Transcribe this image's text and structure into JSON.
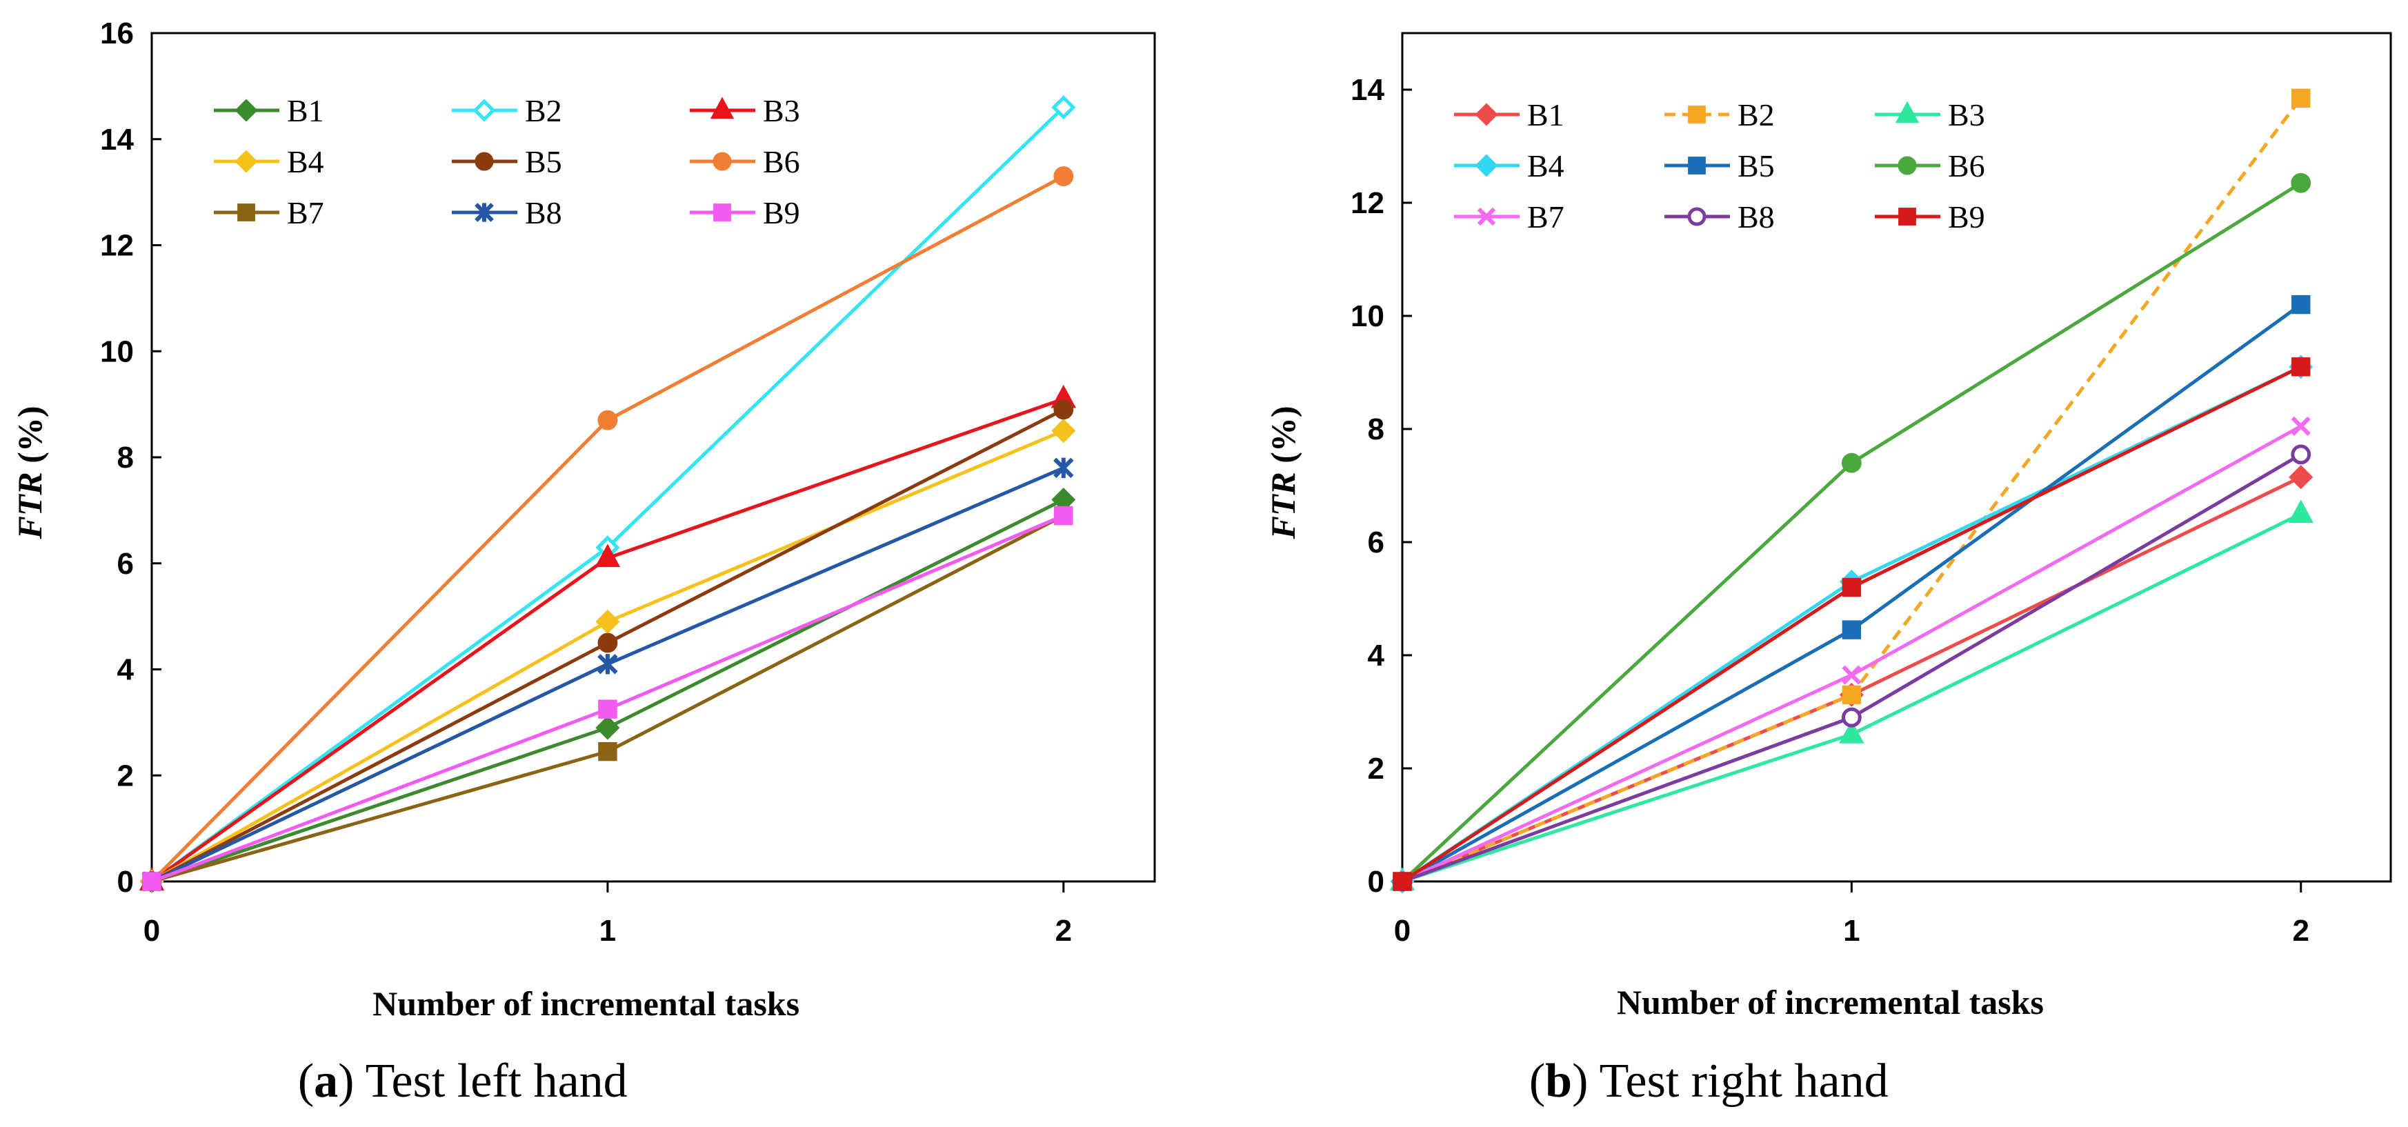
{
  "chart_data": [
    {
      "type": "line",
      "caption": {
        "open": "(",
        "letter": "a",
        "close": ")",
        "text": " Test left hand"
      },
      "xlabel": "Number of incremental tasks",
      "ylabel_main": "FTR",
      "ylabel_unit": " (%)",
      "x": [
        0,
        1,
        2
      ],
      "xticks": [
        "0",
        "1",
        "2"
      ],
      "xlim": [
        0,
        2.2
      ],
      "ylim": [
        0,
        16
      ],
      "yticks": [
        "0",
        "2",
        "4",
        "6",
        "8",
        "10",
        "12",
        "14",
        "16"
      ],
      "legend_position": "top-left",
      "legend_columns": 3,
      "series": [
        {
          "name": "B1",
          "values": [
            0,
            2.9,
            7.2
          ],
          "color": "#3C8A2E",
          "marker": "diamond",
          "filled": true,
          "dashed": false
        },
        {
          "name": "B2",
          "values": [
            0,
            6.3,
            14.6
          ],
          "color": "#33E5F2",
          "marker": "diamond",
          "filled": false,
          "dashed": false
        },
        {
          "name": "B3",
          "values": [
            0,
            6.1,
            9.1
          ],
          "color": "#E8141C",
          "marker": "triangle",
          "filled": true,
          "dashed": false
        },
        {
          "name": "B4",
          "values": [
            0,
            4.9,
            8.5
          ],
          "color": "#F5C11A",
          "marker": "diamond",
          "filled": true,
          "dashed": false
        },
        {
          "name": "B5",
          "values": [
            0,
            4.5,
            8.9
          ],
          "color": "#8C3B0E",
          "marker": "circle",
          "filled": true,
          "dashed": false
        },
        {
          "name": "B6",
          "values": [
            0,
            8.7,
            13.3
          ],
          "color": "#F07F35",
          "marker": "circle",
          "filled": true,
          "dashed": false
        },
        {
          "name": "B7",
          "values": [
            0,
            2.45,
            6.9
          ],
          "color": "#8A6414",
          "marker": "square",
          "filled": true,
          "dashed": false
        },
        {
          "name": "B8",
          "values": [
            0,
            4.1,
            7.8
          ],
          "color": "#2458A6",
          "marker": "asterisk",
          "filled": false,
          "dashed": false
        },
        {
          "name": "B9",
          "values": [
            0,
            3.25,
            6.9
          ],
          "color": "#F25AF2",
          "marker": "square",
          "filled": true,
          "dashed": false
        }
      ]
    },
    {
      "type": "line",
      "caption": {
        "open": "(",
        "letter": "b",
        "close": ")",
        "text": " Test right hand"
      },
      "xlabel": "Number of incremental tasks",
      "ylabel_main": "FTR",
      "ylabel_unit": " (%)",
      "x": [
        0,
        1,
        2
      ],
      "xticks": [
        "0",
        "1",
        "2"
      ],
      "xlim": [
        0,
        2.2
      ],
      "ylim": [
        0,
        15
      ],
      "yticks": [
        "0",
        "2",
        "4",
        "6",
        "8",
        "10",
        "12",
        "14"
      ],
      "legend_position": "top-left",
      "legend_columns": 3,
      "series": [
        {
          "name": "B1",
          "values": [
            0,
            3.3,
            7.15
          ],
          "color": "#F04B4B",
          "marker": "diamond",
          "filled": true,
          "dashed": false
        },
        {
          "name": "B2",
          "values": [
            0,
            3.3,
            13.85
          ],
          "color": "#F5A623",
          "marker": "square",
          "filled": true,
          "dashed": true
        },
        {
          "name": "B3",
          "values": [
            0,
            2.6,
            6.5
          ],
          "color": "#2EE8A0",
          "marker": "triangle",
          "filled": true,
          "dashed": false
        },
        {
          "name": "B4",
          "values": [
            0,
            5.3,
            9.1
          ],
          "color": "#33D8F0",
          "marker": "diamond",
          "filled": true,
          "dashed": false
        },
        {
          "name": "B5",
          "values": [
            0,
            4.45,
            10.2
          ],
          "color": "#1A6EB8",
          "marker": "square",
          "filled": true,
          "dashed": false
        },
        {
          "name": "B6",
          "values": [
            0,
            7.4,
            12.35
          ],
          "color": "#4BA83E",
          "marker": "circle",
          "filled": true,
          "dashed": false
        },
        {
          "name": "B7",
          "values": [
            0,
            3.65,
            8.05
          ],
          "color": "#F26AF2",
          "marker": "x",
          "filled": false,
          "dashed": false
        },
        {
          "name": "B8",
          "values": [
            0,
            2.9,
            7.55
          ],
          "color": "#7A3C9E",
          "marker": "circle",
          "filled": false,
          "dashed": false
        },
        {
          "name": "B9",
          "values": [
            0,
            5.2,
            9.1
          ],
          "color": "#D61A1A",
          "marker": "square",
          "filled": true,
          "dashed": false
        }
      ]
    }
  ]
}
